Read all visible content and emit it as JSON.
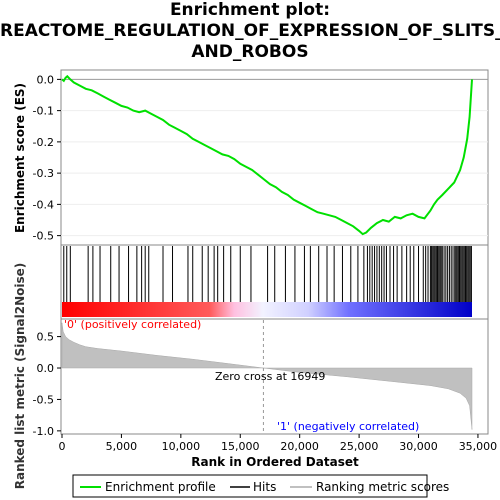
{
  "title_lines": [
    "Enrichment plot:",
    "REACTOME_REGULATION_OF_EXPRESSION_OF_SLITS_",
    "AND_ROBOS"
  ],
  "chart_data": {
    "type": "line",
    "title": "Enrichment plot: REACTOME_REGULATION_OF_EXPRESSION_OF_SLITS_AND_ROBOS",
    "xlabel": "Rank in Ordered Dataset",
    "xlim": [
      0,
      35000
    ],
    "x_ticks": [
      0,
      5000,
      10000,
      15000,
      20000,
      25000,
      30000,
      35000
    ],
    "x_tick_labels": [
      "0",
      "5,000",
      "10,000",
      "15,000",
      "20,000",
      "25,000",
      "30,000",
      "35,000"
    ],
    "es_panel": {
      "ylabel": "Enrichment score (ES)",
      "ylim": [
        -0.53,
        0.03
      ],
      "y_ticks": [
        0.0,
        -0.1,
        -0.2,
        -0.3,
        -0.4,
        -0.5
      ],
      "y_tick_labels": [
        "0.0",
        "-0.1",
        "-0.2",
        "-0.3",
        "-0.4",
        "-0.5"
      ],
      "series": [
        {
          "name": "Enrichment profile",
          "color": "#00e000",
          "x": [
            0,
            150,
            300,
            450,
            700,
            1000,
            1500,
            2000,
            2500,
            3000,
            3500,
            4000,
            4500,
            5000,
            5500,
            6000,
            6500,
            7000,
            7500,
            8000,
            8500,
            9000,
            9500,
            10000,
            10500,
            11000,
            11500,
            12000,
            12500,
            13000,
            13500,
            14000,
            14500,
            15000,
            15500,
            16000,
            16500,
            17000,
            17500,
            18000,
            18500,
            19000,
            19500,
            20000,
            20500,
            21000,
            21500,
            22000,
            22500,
            23000,
            23500,
            24000,
            24500,
            25000,
            25300,
            25600,
            26000,
            26500,
            27000,
            27500,
            28000,
            28500,
            29000,
            29500,
            30000,
            30500,
            31000,
            31300,
            31600,
            32000,
            32500,
            33000,
            33500,
            33800,
            34100,
            34300,
            34500
          ],
          "values": [
            0.0,
            -0.005,
            0.005,
            0.01,
            0.0,
            -0.01,
            -0.02,
            -0.03,
            -0.035,
            -0.045,
            -0.055,
            -0.065,
            -0.075,
            -0.085,
            -0.09,
            -0.1,
            -0.105,
            -0.1,
            -0.11,
            -0.12,
            -0.13,
            -0.145,
            -0.155,
            -0.165,
            -0.175,
            -0.19,
            -0.2,
            -0.21,
            -0.22,
            -0.23,
            -0.24,
            -0.245,
            -0.255,
            -0.27,
            -0.28,
            -0.29,
            -0.305,
            -0.32,
            -0.335,
            -0.345,
            -0.36,
            -0.37,
            -0.385,
            -0.395,
            -0.405,
            -0.415,
            -0.425,
            -0.43,
            -0.435,
            -0.44,
            -0.45,
            -0.46,
            -0.47,
            -0.485,
            -0.495,
            -0.49,
            -0.475,
            -0.46,
            -0.45,
            -0.455,
            -0.44,
            -0.445,
            -0.435,
            -0.43,
            -0.44,
            -0.445,
            -0.42,
            -0.4,
            -0.385,
            -0.37,
            -0.35,
            -0.33,
            -0.29,
            -0.25,
            -0.19,
            -0.12,
            0.0
          ]
        }
      ]
    },
    "hits_panel": {
      "hit_positions": [
        150,
        400,
        700,
        2200,
        2600,
        3200,
        4100,
        4800,
        5600,
        6300,
        6700,
        7000,
        7300,
        8500,
        9300,
        10600,
        11000,
        11800,
        12300,
        12800,
        13100,
        13600,
        14200,
        15000,
        15900,
        17300,
        17900,
        18800,
        19600,
        20400,
        20900,
        21600,
        22300,
        22900,
        23600,
        24300,
        24900,
        25400,
        25700,
        25900,
        26100,
        26300,
        26500,
        26700,
        26900,
        27100,
        27300,
        27600,
        27900,
        28200,
        28600,
        29000,
        29300,
        29600,
        30000,
        30400,
        30600,
        30800,
        31000,
        31100,
        31200,
        31300,
        31400,
        31500,
        31600,
        31700,
        31800,
        31900,
        32000,
        32150,
        32300,
        32450,
        32600,
        32750,
        32900,
        33050,
        33150,
        33250,
        33350,
        33450,
        33550,
        33650,
        33750,
        33850,
        33950,
        34050,
        34150,
        34250,
        34350,
        34450
      ]
    },
    "metric_panel": {
      "ylabel": "Ranked list metric (Signal2Noise)",
      "ylim": [
        -1.05,
        0.78
      ],
      "y_ticks": [
        0.5,
        0.0,
        -0.5,
        -1.0
      ],
      "y_tick_labels": [
        "0.5",
        "0.0",
        "-0.5",
        "-1.0"
      ],
      "series": [
        {
          "name": "Ranking metric scores",
          "color": "#c0c0c0",
          "x": [
            0,
            100,
            300,
            600,
            1000,
            1500,
            2000,
            3000,
            5000,
            8000,
            11000,
            14000,
            16949,
            20000,
            24000,
            28000,
            31000,
            32500,
            33500,
            34000,
            34300,
            34500
          ],
          "values": [
            0.72,
            0.58,
            0.5,
            0.45,
            0.41,
            0.37,
            0.34,
            0.31,
            0.27,
            0.2,
            0.14,
            0.07,
            0.0,
            -0.07,
            -0.14,
            -0.22,
            -0.28,
            -0.33,
            -0.4,
            -0.48,
            -0.6,
            -0.98
          ]
        }
      ],
      "zero_cross_label": "Zero cross at 16949",
      "zero_cross": 16949,
      "pos_label": "'0' (positively correlated)",
      "neg_label": "'1' (negatively correlated)",
      "pos_label_color": "#ff0000",
      "neg_label_color": "#0000ff"
    },
    "legend": [
      "Enrichment profile",
      "Hits",
      "Ranking metric scores"
    ],
    "legend_colors": [
      "#00e000",
      "#000000",
      "#c0c0c0"
    ]
  }
}
